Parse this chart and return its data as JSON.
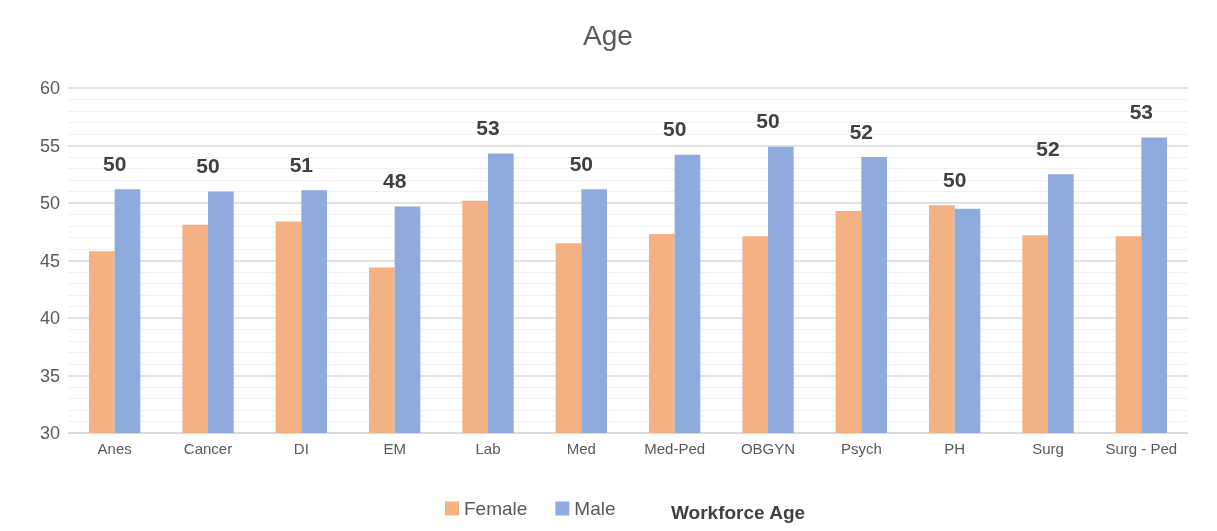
{
  "chart_data": {
    "type": "bar",
    "title": "Age",
    "legend_title": "Workforce Age",
    "categories": [
      "Anes",
      "Cancer",
      "DI",
      "EM",
      "Lab",
      "Med",
      "Med-Ped",
      "OBGYN",
      "Psych",
      "PH",
      "Surg",
      "Surg - Ped"
    ],
    "series": [
      {
        "name": "Female",
        "color": "#f4b183",
        "values": [
          45.8,
          48.1,
          48.4,
          44.4,
          50.2,
          46.5,
          47.3,
          47.1,
          49.3,
          49.8,
          47.2,
          47.1
        ]
      },
      {
        "name": "Male",
        "color": "#8faadc",
        "values": [
          51.2,
          51.0,
          51.1,
          49.7,
          54.3,
          51.2,
          54.2,
          54.9,
          54.0,
          49.5,
          52.5,
          55.7
        ]
      }
    ],
    "annotations": [
      {
        "text": "50",
        "x": "Anes",
        "y": 51.2
      },
      {
        "text": "50",
        "x": "Cancer",
        "y": 51.0
      },
      {
        "text": "51",
        "x": "DI",
        "y": 51.1
      },
      {
        "text": "48",
        "x": "EM",
        "y": 49.7
      },
      {
        "text": "53",
        "x": "Lab",
        "y": 54.3
      },
      {
        "text": "50",
        "x": "Med",
        "y": 51.2
      },
      {
        "text": "50",
        "x": "Med-Ped",
        "y": 54.2
      },
      {
        "text": "50",
        "x": "OBGYN",
        "y": 54.9
      },
      {
        "text": "52",
        "x": "Psych",
        "y": 54.0
      },
      {
        "text": "50",
        "x": "PH",
        "y": 49.8
      },
      {
        "text": "52",
        "x": "Surg",
        "y": 52.5
      },
      {
        "text": "53",
        "x": "Surg - Ped",
        "y": 55.7
      }
    ],
    "ylim": [
      30,
      60
    ],
    "yticks": [
      30,
      35,
      40,
      45,
      50,
      55,
      60
    ],
    "grid": "y",
    "legend": "bottom"
  }
}
